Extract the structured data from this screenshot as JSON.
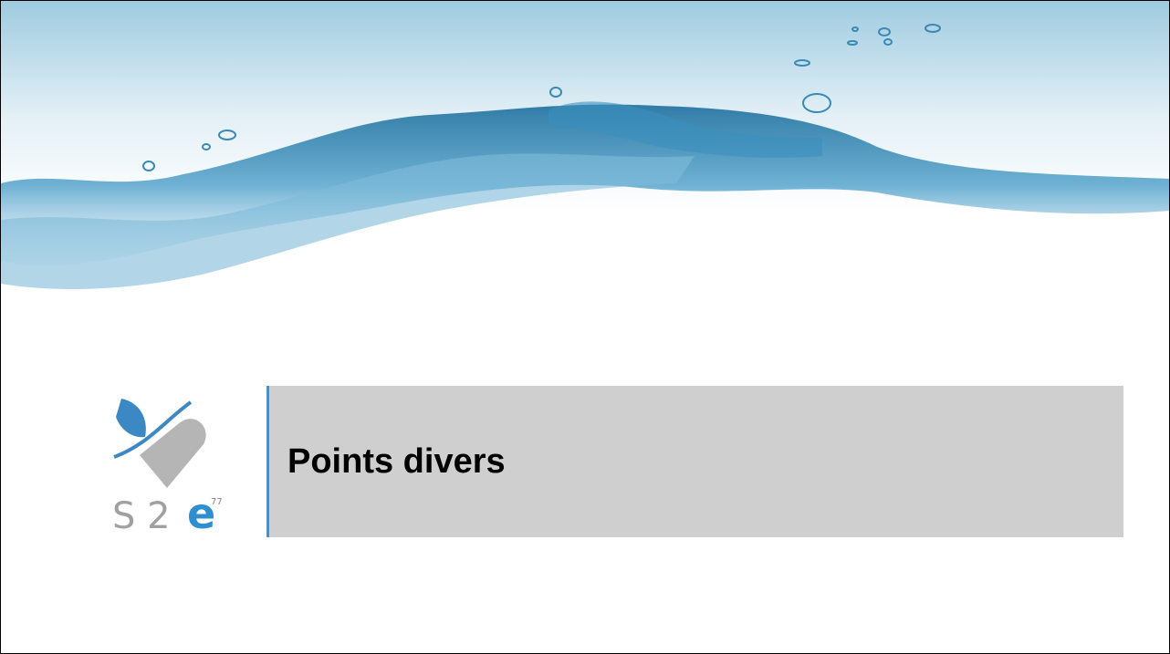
{
  "title": "Points divers",
  "logo": {
    "text": "S 2",
    "mark": "e",
    "sup": "77"
  }
}
